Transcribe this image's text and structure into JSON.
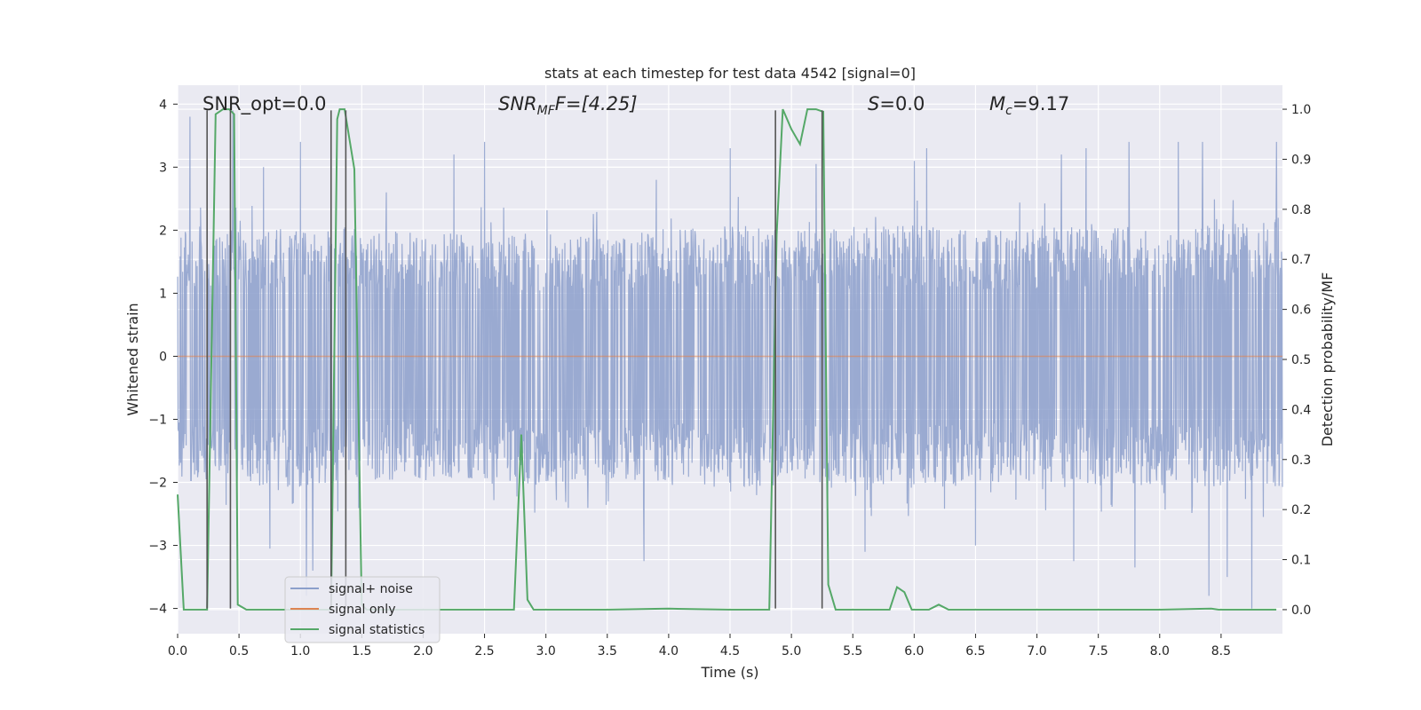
{
  "chart_data": {
    "type": "line",
    "title": "stats at each timestep for test data 4542 [signal=0]",
    "xlabel": "Time (s)",
    "ylabel": "Whitened strain",
    "y2label": "Detection probability/MF",
    "xlim": [
      0.0,
      9.0
    ],
    "ylim": [
      -4.4,
      4.3
    ],
    "y2lim": [
      -0.048,
      1.048
    ],
    "xticks": [
      "0.0",
      "0.5",
      "1.0",
      "1.5",
      "2.0",
      "2.5",
      "3.0",
      "3.5",
      "4.0",
      "4.5",
      "5.0",
      "5.5",
      "6.0",
      "6.5",
      "7.0",
      "7.5",
      "8.0",
      "8.5"
    ],
    "yticks": [
      "4",
      "3",
      "2",
      "1",
      "0",
      "−1",
      "−2",
      "−3",
      "−4"
    ],
    "y2ticks": [
      "0.0",
      "0.1",
      "0.2",
      "0.3",
      "0.4",
      "0.5",
      "0.6",
      "0.7",
      "0.8",
      "0.9",
      "1.0"
    ],
    "grid": true,
    "legend": {
      "position": "lower-left",
      "entries": [
        "signal+ noise",
        "signal only",
        "signal statistics"
      ]
    },
    "annotations": {
      "snr_opt": "SNR_opt=0.0",
      "snr_mf_prefix": "SNR",
      "snr_mf_sub": "MF",
      "snr_mf_value": "F=[4.25]",
      "s_italic": "S",
      "s_value": "=0.0",
      "mc_italic": "M",
      "mc_sub": "c",
      "mc_value": "=9.17"
    },
    "series": [
      {
        "name": "signal+ noise",
        "axis": "left",
        "color": "#8c9fcb",
        "envelope_upper": [
          [
            0.0,
            2.0
          ],
          [
            0.5,
            1.9
          ],
          [
            1.0,
            1.95
          ],
          [
            1.5,
            1.95
          ],
          [
            2.0,
            1.85
          ],
          [
            2.5,
            1.9
          ],
          [
            3.0,
            1.85
          ],
          [
            3.5,
            1.8
          ],
          [
            4.0,
            1.95
          ],
          [
            4.5,
            2.0
          ],
          [
            5.0,
            1.9
          ],
          [
            5.5,
            1.95
          ],
          [
            6.0,
            2.0
          ],
          [
            6.5,
            1.9
          ],
          [
            7.0,
            1.95
          ],
          [
            7.5,
            2.0
          ],
          [
            8.0,
            2.0
          ],
          [
            8.5,
            2.0
          ],
          [
            9.0,
            2.1
          ]
        ],
        "envelope_lower": [
          [
            0.0,
            -1.9
          ],
          [
            0.5,
            -1.9
          ],
          [
            1.0,
            -2.0
          ],
          [
            1.5,
            -1.85
          ],
          [
            2.0,
            -1.9
          ],
          [
            2.5,
            -1.85
          ],
          [
            3.0,
            -1.95
          ],
          [
            3.5,
            -1.85
          ],
          [
            4.0,
            -1.9
          ],
          [
            4.5,
            -2.0
          ],
          [
            5.0,
            -1.95
          ],
          [
            5.5,
            -1.9
          ],
          [
            6.0,
            -2.0
          ],
          [
            6.5,
            -1.9
          ],
          [
            7.0,
            -1.9
          ],
          [
            7.5,
            -1.95
          ],
          [
            8.0,
            -1.95
          ],
          [
            8.5,
            -2.0
          ],
          [
            9.0,
            -2.0
          ]
        ],
        "spikes": [
          [
            0.1,
            3.8
          ],
          [
            0.45,
            3.9
          ],
          [
            0.7,
            3.0
          ],
          [
            0.75,
            3.5
          ],
          [
            1.0,
            3.4
          ],
          [
            1.7,
            2.6
          ],
          [
            2.25,
            3.2
          ],
          [
            2.5,
            3.4
          ],
          [
            3.9,
            2.8
          ],
          [
            4.5,
            3.3
          ],
          [
            5.2,
            3.05
          ],
          [
            6.0,
            3.1
          ],
          [
            6.1,
            3.3
          ],
          [
            7.2,
            3.2
          ],
          [
            7.4,
            3.3
          ],
          [
            7.75,
            3.4
          ],
          [
            8.15,
            3.4
          ],
          [
            8.35,
            3.4
          ],
          [
            8.95,
            3.4
          ],
          [
            0.75,
            -3.05
          ],
          [
            1.05,
            -3.8
          ],
          [
            1.1,
            -3.4
          ],
          [
            3.8,
            -3.25
          ],
          [
            5.6,
            -3.1
          ],
          [
            6.5,
            -3.0
          ],
          [
            7.3,
            -3.25
          ],
          [
            7.8,
            -3.35
          ],
          [
            8.4,
            -3.8
          ],
          [
            8.55,
            -3.5
          ],
          [
            8.75,
            -4.0
          ]
        ]
      },
      {
        "name": "signal only",
        "axis": "left",
        "color": "#dd8452",
        "x": [
          0.0,
          9.0
        ],
        "y": [
          0.0,
          0.0
        ]
      },
      {
        "name": "signal statistics",
        "axis": "right",
        "color": "#55a868",
        "x": [
          0.0,
          0.05,
          0.24,
          0.31,
          0.37,
          0.42,
          0.46,
          0.49,
          0.56,
          0.65,
          1.25,
          1.3,
          1.32,
          1.36,
          1.44,
          1.5,
          1.54,
          1.6,
          2.0,
          2.5,
          2.74,
          2.8,
          2.85,
          2.9,
          2.95,
          3.0,
          3.5,
          4.0,
          4.5,
          4.82,
          4.88,
          4.93,
          5.0,
          5.07,
          5.13,
          5.2,
          5.26,
          5.3,
          5.36,
          5.5,
          5.8,
          5.86,
          5.92,
          5.98,
          6.05,
          6.12,
          6.2,
          6.28,
          6.5,
          7.0,
          7.5,
          8.0,
          8.42,
          8.48,
          8.6,
          8.95
        ],
        "y": [
          0.23,
          0.0,
          0.0,
          0.99,
          1.0,
          1.0,
          0.99,
          0.01,
          0.0,
          0.0,
          0.0,
          0.98,
          1.0,
          1.0,
          0.88,
          0.01,
          0.0,
          0.0,
          0.0,
          0.0,
          0.0,
          0.35,
          0.02,
          0.0,
          0.0,
          0.0,
          0.0,
          0.002,
          0.0,
          0.0,
          0.75,
          1.0,
          0.96,
          0.93,
          1.0,
          1.0,
          0.995,
          0.05,
          0.0,
          0.0,
          0.0,
          0.045,
          0.035,
          0.0,
          0.0,
          0.0,
          0.01,
          0.0,
          0.0,
          0.0,
          0.0,
          0.0,
          0.002,
          0.0,
          0.0,
          0.0
        ]
      }
    ],
    "vertical_markers": {
      "color": "#555555",
      "x": [
        0.24,
        0.43,
        1.25,
        1.37,
        4.87,
        5.25
      ],
      "y_top": 3.9,
      "y_bottom": -4.0
    }
  }
}
